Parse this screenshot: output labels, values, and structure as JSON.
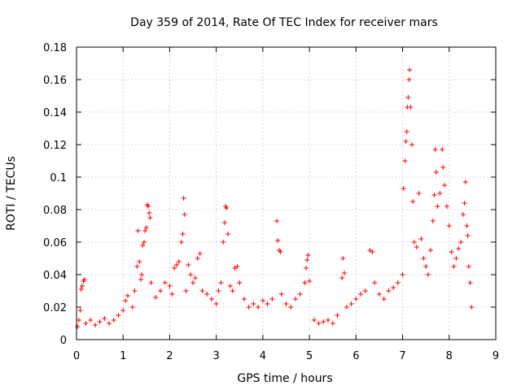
{
  "chart_data": {
    "type": "scatter",
    "title": "Day 359 of 2014, Rate Of TEC Index for receiver mars",
    "xlabel": "GPS time / hours",
    "ylabel": "ROTI / TECUs",
    "xlim": [
      0,
      9
    ],
    "ylim": [
      0,
      0.18
    ],
    "xticks": [
      0,
      1,
      2,
      3,
      4,
      5,
      6,
      7,
      8,
      9
    ],
    "yticks": [
      0,
      0.02,
      0.04,
      0.06,
      0.08,
      0.1,
      0.12,
      0.14,
      0.16,
      0.18
    ],
    "xtick_labels": [
      "0",
      "1",
      "2",
      "3",
      "4",
      "5",
      "6",
      "7",
      "8",
      "9"
    ],
    "ytick_labels": [
      "0",
      "0.02",
      "0.04",
      "0.06",
      "0.08",
      "0.1",
      "0.12",
      "0.14",
      "0.16",
      "0.18"
    ],
    "grid": true,
    "marker": "+",
    "series": [
      {
        "name": "ROTI",
        "color": "#ff0000",
        "points": [
          [
            0.02,
            0.008
          ],
          [
            0.05,
            0.012
          ],
          [
            0.08,
            0.018
          ],
          [
            0.1,
            0.031
          ],
          [
            0.12,
            0.033
          ],
          [
            0.15,
            0.036
          ],
          [
            0.17,
            0.037
          ],
          [
            0.2,
            0.01
          ],
          [
            0.3,
            0.012
          ],
          [
            0.4,
            0.009
          ],
          [
            0.5,
            0.011
          ],
          [
            0.6,
            0.013
          ],
          [
            0.7,
            0.01
          ],
          [
            0.8,
            0.012
          ],
          [
            0.9,
            0.015
          ],
          [
            1.0,
            0.018
          ],
          [
            1.05,
            0.024
          ],
          [
            1.1,
            0.027
          ],
          [
            1.2,
            0.02
          ],
          [
            1.25,
            0.03
          ],
          [
            1.3,
            0.045
          ],
          [
            1.32,
            0.067
          ],
          [
            1.35,
            0.048
          ],
          [
            1.38,
            0.037
          ],
          [
            1.4,
            0.04
          ],
          [
            1.42,
            0.058
          ],
          [
            1.45,
            0.06
          ],
          [
            1.47,
            0.067
          ],
          [
            1.5,
            0.069
          ],
          [
            1.52,
            0.083
          ],
          [
            1.54,
            0.082
          ],
          [
            1.56,
            0.078
          ],
          [
            1.58,
            0.075
          ],
          [
            1.6,
            0.035
          ],
          [
            1.7,
            0.026
          ],
          [
            1.8,
            0.03
          ],
          [
            1.9,
            0.035
          ],
          [
            2.0,
            0.033
          ],
          [
            2.05,
            0.028
          ],
          [
            2.1,
            0.044
          ],
          [
            2.15,
            0.046
          ],
          [
            2.2,
            0.048
          ],
          [
            2.25,
            0.06
          ],
          [
            2.28,
            0.065
          ],
          [
            2.3,
            0.087
          ],
          [
            2.32,
            0.077
          ],
          [
            2.35,
            0.03
          ],
          [
            2.4,
            0.046
          ],
          [
            2.45,
            0.04
          ],
          [
            2.5,
            0.035
          ],
          [
            2.55,
            0.038
          ],
          [
            2.6,
            0.05
          ],
          [
            2.65,
            0.053
          ],
          [
            2.7,
            0.03
          ],
          [
            2.8,
            0.028
          ],
          [
            2.9,
            0.025
          ],
          [
            3.0,
            0.022
          ],
          [
            3.05,
            0.03
          ],
          [
            3.1,
            0.035
          ],
          [
            3.15,
            0.06
          ],
          [
            3.18,
            0.072
          ],
          [
            3.2,
            0.082
          ],
          [
            3.22,
            0.081
          ],
          [
            3.25,
            0.065
          ],
          [
            3.3,
            0.033
          ],
          [
            3.35,
            0.03
          ],
          [
            3.4,
            0.044
          ],
          [
            3.45,
            0.045
          ],
          [
            3.5,
            0.035
          ],
          [
            3.6,
            0.025
          ],
          [
            3.7,
            0.02
          ],
          [
            3.8,
            0.022
          ],
          [
            3.9,
            0.02
          ],
          [
            4.0,
            0.024
          ],
          [
            4.1,
            0.022
          ],
          [
            4.2,
            0.025
          ],
          [
            4.3,
            0.073
          ],
          [
            4.32,
            0.061
          ],
          [
            4.35,
            0.055
          ],
          [
            4.38,
            0.054
          ],
          [
            4.4,
            0.028
          ],
          [
            4.5,
            0.022
          ],
          [
            4.6,
            0.02
          ],
          [
            4.7,
            0.025
          ],
          [
            4.8,
            0.028
          ],
          [
            4.9,
            0.035
          ],
          [
            4.93,
            0.044
          ],
          [
            4.95,
            0.049
          ],
          [
            4.97,
            0.052
          ],
          [
            5.0,
            0.036
          ],
          [
            5.1,
            0.012
          ],
          [
            5.2,
            0.01
          ],
          [
            5.3,
            0.011
          ],
          [
            5.4,
            0.012
          ],
          [
            5.5,
            0.01
          ],
          [
            5.6,
            0.015
          ],
          [
            5.7,
            0.038
          ],
          [
            5.72,
            0.05
          ],
          [
            5.75,
            0.041
          ],
          [
            5.8,
            0.02
          ],
          [
            5.9,
            0.022
          ],
          [
            6.0,
            0.025
          ],
          [
            6.1,
            0.028
          ],
          [
            6.2,
            0.03
          ],
          [
            6.3,
            0.055
          ],
          [
            6.35,
            0.054
          ],
          [
            6.4,
            0.035
          ],
          [
            6.5,
            0.028
          ],
          [
            6.6,
            0.025
          ],
          [
            6.7,
            0.03
          ],
          [
            6.8,
            0.032
          ],
          [
            6.9,
            0.035
          ],
          [
            7.0,
            0.04
          ],
          [
            7.02,
            0.093
          ],
          [
            7.05,
            0.11
          ],
          [
            7.07,
            0.122
          ],
          [
            7.09,
            0.128
          ],
          [
            7.1,
            0.143
          ],
          [
            7.12,
            0.149
          ],
          [
            7.14,
            0.16
          ],
          [
            7.15,
            0.166
          ],
          [
            7.17,
            0.143
          ],
          [
            7.2,
            0.12
          ],
          [
            7.22,
            0.085
          ],
          [
            7.25,
            0.06
          ],
          [
            7.3,
            0.057
          ],
          [
            7.35,
            0.09
          ],
          [
            7.4,
            0.062
          ],
          [
            7.45,
            0.05
          ],
          [
            7.5,
            0.045
          ],
          [
            7.55,
            0.04
          ],
          [
            7.6,
            0.055
          ],
          [
            7.65,
            0.073
          ],
          [
            7.68,
            0.089
          ],
          [
            7.7,
            0.117
          ],
          [
            7.72,
            0.103
          ],
          [
            7.75,
            0.082
          ],
          [
            7.8,
            0.09
          ],
          [
            7.85,
            0.117
          ],
          [
            7.87,
            0.106
          ],
          [
            7.9,
            0.095
          ],
          [
            7.95,
            0.082
          ],
          [
            8.0,
            0.07
          ],
          [
            8.05,
            0.054
          ],
          [
            8.1,
            0.045
          ],
          [
            8.15,
            0.05
          ],
          [
            8.2,
            0.056
          ],
          [
            8.25,
            0.06
          ],
          [
            8.3,
            0.077
          ],
          [
            8.33,
            0.084
          ],
          [
            8.35,
            0.097
          ],
          [
            8.38,
            0.07
          ],
          [
            8.4,
            0.064
          ],
          [
            8.42,
            0.045
          ],
          [
            8.45,
            0.035
          ],
          [
            8.48,
            0.02
          ]
        ]
      }
    ]
  }
}
